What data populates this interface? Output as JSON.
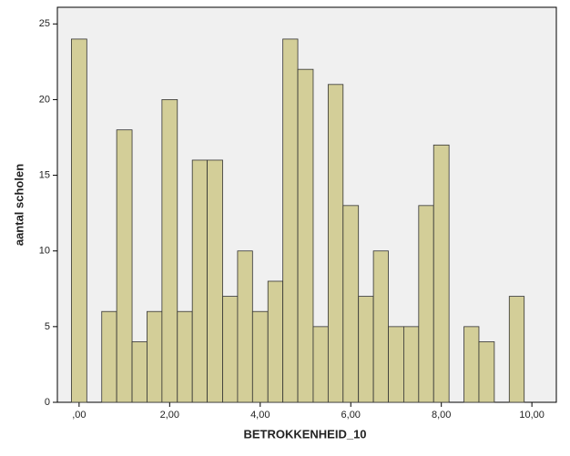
{
  "chart_data": {
    "type": "histogram",
    "xlabel": "BETROKKENHEID_10",
    "ylabel": "aantal scholen",
    "bins": [
      -0.17,
      0.17,
      0.5,
      0.83,
      1.17,
      1.5,
      1.83,
      2.17,
      2.5,
      2.83,
      3.17,
      3.5,
      3.83,
      4.17,
      4.5,
      4.83,
      5.17,
      5.5,
      5.83,
      6.17,
      6.5,
      6.83,
      7.17,
      7.5,
      7.83,
      8.17,
      8.5,
      8.83,
      9.17,
      9.5,
      9.83
    ],
    "values": [
      24,
      0,
      6,
      18,
      4,
      6,
      20,
      6,
      16,
      16,
      7,
      10,
      6,
      8,
      24,
      22,
      5,
      21,
      13,
      7,
      10,
      5,
      5,
      13,
      17,
      0,
      5,
      4,
      0,
      7
    ],
    "color": "#d3ce98",
    "xlim": [
      -0.48,
      10.54
    ],
    "ylim": [
      0,
      26.1
    ],
    "xticks": [
      {
        "value": 0,
        "label": ",00"
      },
      {
        "value": 2,
        "label": "2,00"
      },
      {
        "value": 4,
        "label": "4,00"
      },
      {
        "value": 6,
        "label": "6,00"
      },
      {
        "value": 8,
        "label": "8,00"
      },
      {
        "value": 10,
        "label": "10,00"
      }
    ],
    "yticks": [
      0,
      5,
      10,
      15,
      20,
      25
    ]
  }
}
